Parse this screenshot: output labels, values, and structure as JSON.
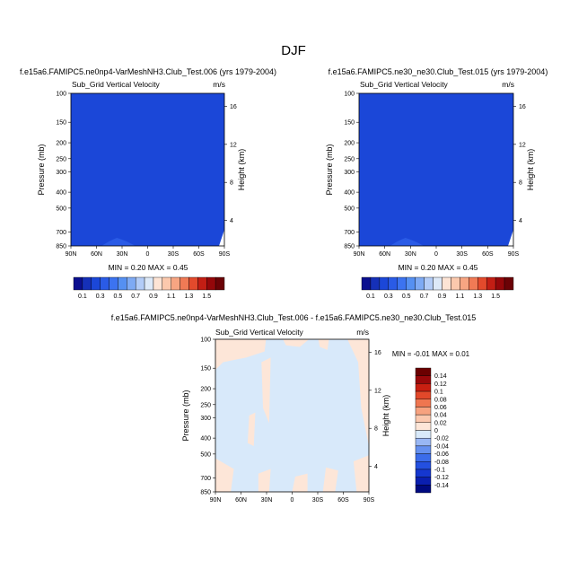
{
  "figure_title": "DJF",
  "chart_data": [
    {
      "type": "heatmap",
      "title": "f.e15a6.FAMIPC5.ne0np4-VarMeshNH3.Club_Test.006 (yrs 1979-2004)",
      "subtitle": "Sub_Grid Vertical Velocity",
      "units": "m/s",
      "xlabel": "",
      "ylabel": "Pressure (mb)",
      "ylabel_right": "Height (km)",
      "x_ticks": [
        "90N",
        "60N",
        "30N",
        "0",
        "30S",
        "60S",
        "90S"
      ],
      "y_ticks": [
        "100",
        "150",
        "200",
        "250",
        "300",
        "400",
        "500",
        "700",
        "850"
      ],
      "y_ticks_right": [
        "16",
        "12",
        "8",
        "4"
      ],
      "stats": "MIN =   0.20  MAX =   0.45",
      "min": 0.2,
      "max": 0.45,
      "dominant_level": "0.1 - 0.3",
      "colorbar_labels": [
        "0.1",
        "0.3",
        "0.5",
        "0.7",
        "0.9",
        "1.1",
        "1.3",
        "1.5"
      ]
    },
    {
      "type": "heatmap",
      "title": "f.e15a6.FAMIPC5.ne30_ne30.Club_Test.015 (yrs 1979-2004)",
      "subtitle": "Sub_Grid Vertical Velocity",
      "units": "m/s",
      "xlabel": "",
      "ylabel": "Pressure (mb)",
      "ylabel_right": "Height (km)",
      "x_ticks": [
        "90N",
        "60N",
        "30N",
        "0",
        "30S",
        "60S",
        "90S"
      ],
      "y_ticks": [
        "100",
        "150",
        "200",
        "250",
        "300",
        "400",
        "500",
        "700",
        "850"
      ],
      "y_ticks_right": [
        "16",
        "12",
        "8",
        "4"
      ],
      "stats": "MIN =   0.20  MAX =   0.45",
      "min": 0.2,
      "max": 0.45,
      "dominant_level": "0.1 - 0.3",
      "colorbar_labels": [
        "0.1",
        "0.3",
        "0.5",
        "0.7",
        "0.9",
        "1.1",
        "1.3",
        "1.5"
      ]
    },
    {
      "type": "heatmap",
      "title": "f.e15a6.FAMIPC5.ne0np4-VarMeshNH3.Club_Test.006 - f.e15a6.FAMIPC5.ne30_ne30.Club_Test.015",
      "subtitle": "Sub_Grid Vertical Velocity",
      "units": "m/s",
      "xlabel": "",
      "ylabel": "Pressure (mb)",
      "ylabel_right": "Height (km)",
      "x_ticks": [
        "90N",
        "60N",
        "30N",
        "0",
        "30S",
        "60S",
        "90S"
      ],
      "y_ticks": [
        "100",
        "150",
        "200",
        "250",
        "300",
        "400",
        "500",
        "700",
        "850"
      ],
      "y_ticks_right": [
        "16",
        "12",
        "8",
        "4"
      ],
      "stats": "MIN =  -0.01  MAX =   0.01",
      "min": -0.01,
      "max": 0.01,
      "dominant_level": "-0.02 - 0",
      "colorbar_labels": [
        "0.14",
        "0.12",
        "0.1",
        "0.08",
        "0.06",
        "0.04",
        "0.02",
        "0",
        "-0.02",
        "-0.04",
        "-0.06",
        "-0.08",
        "-0.1",
        "-0.12",
        "-0.14"
      ]
    }
  ]
}
